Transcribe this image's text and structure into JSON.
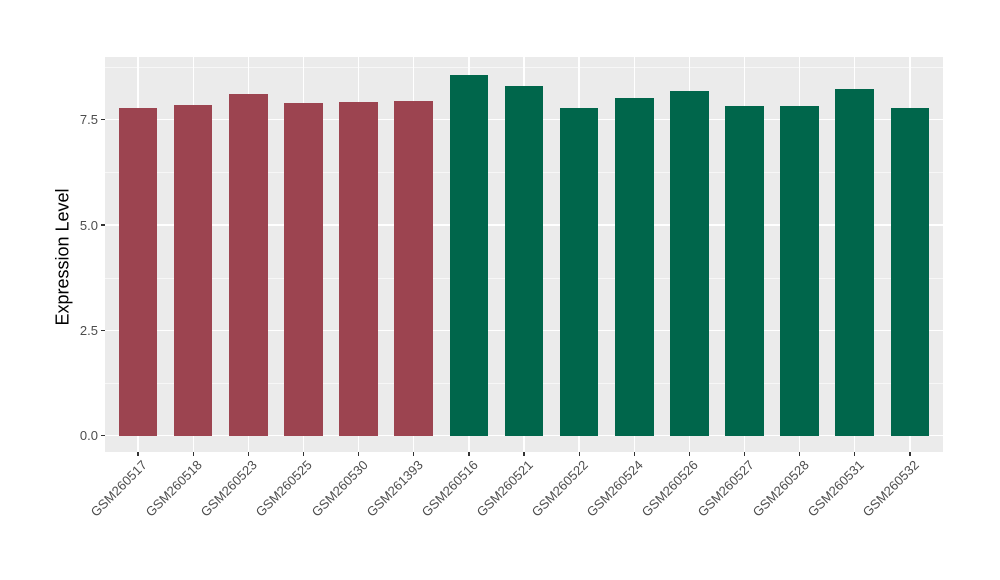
{
  "chart_data": {
    "type": "bar",
    "title": "",
    "xlabel": "",
    "ylabel": "Expression Level",
    "categories": [
      "GSM260517",
      "GSM260518",
      "GSM260523",
      "GSM260525",
      "GSM260530",
      "GSM261393",
      "GSM260516",
      "GSM260521",
      "GSM260522",
      "GSM260524",
      "GSM260526",
      "GSM260527",
      "GSM260528",
      "GSM260531",
      "GSM260532"
    ],
    "values": [
      7.78,
      7.86,
      8.12,
      7.9,
      7.92,
      7.94,
      8.57,
      8.31,
      7.77,
      8.02,
      8.19,
      7.82,
      7.82,
      8.24,
      7.79
    ],
    "group_index": [
      0,
      0,
      0,
      0,
      0,
      0,
      1,
      1,
      1,
      1,
      1,
      1,
      1,
      1,
      1
    ],
    "group_colors": [
      "#9C4450",
      "#00664B"
    ],
    "yticks": [
      0,
      2.5,
      5,
      7.5
    ],
    "ytick_labels": [
      "0.0",
      "2.5",
      "5.0",
      "7.5"
    ],
    "minor_yticks": [
      1.25,
      3.75,
      6.25,
      8.75
    ],
    "ylim": [
      -0.39,
      8.99
    ],
    "grid": true,
    "legend": "none",
    "panel_bg": "#EBEBEB",
    "grid_color": "#FFFFFF",
    "tick_text_color": "#4D4D4D",
    "axis_tick_color": "#333333"
  }
}
